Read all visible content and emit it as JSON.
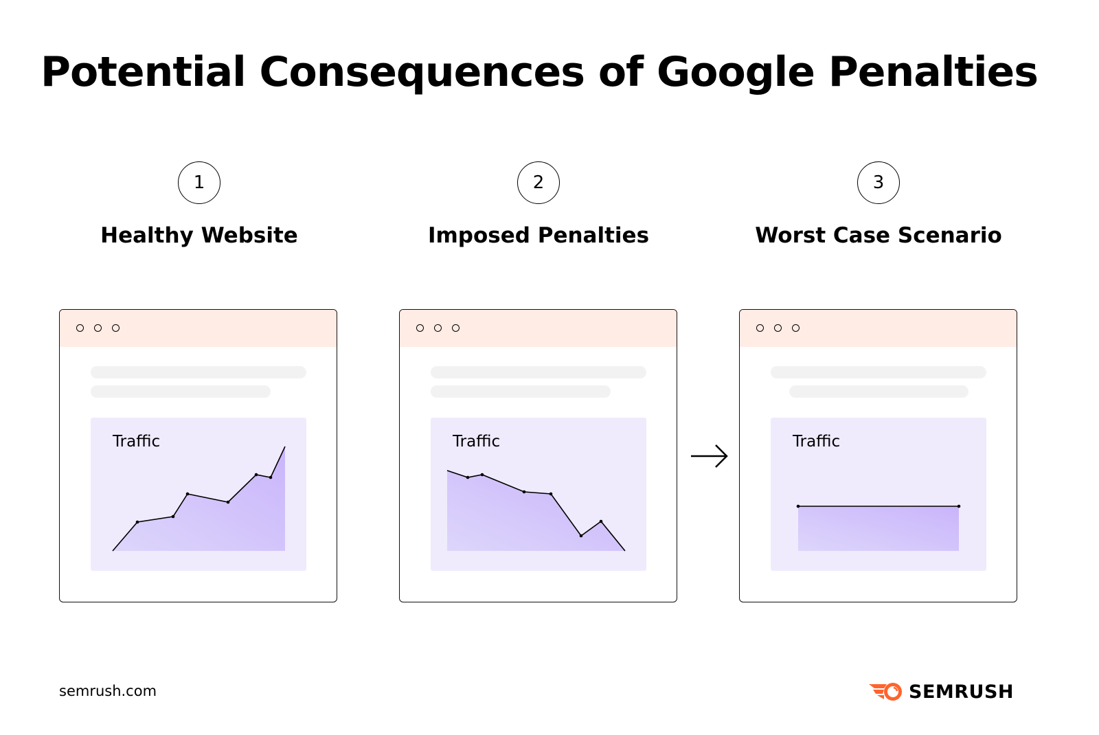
{
  "title": "Potential Consequences of Google Penalties",
  "steps": [
    {
      "number": "1",
      "label": "Healthy Website",
      "chart_label": "Traffic",
      "trend": "rising"
    },
    {
      "number": "2",
      "label": "Imposed Penalties",
      "chart_label": "Traffic",
      "trend": "falling"
    },
    {
      "number": "3",
      "label": "Worst Case Scenario",
      "chart_label": "Traffic",
      "trend": "flat"
    }
  ],
  "footer": {
    "url": "semrush.com",
    "brand": "SEMRUSH"
  },
  "colors": {
    "window_bar": "#ffece4",
    "chart_bg": "#efebfc",
    "area_fill": "#c9b4fb",
    "brand_orange": "#ff642d"
  },
  "icons": {
    "arrow": "arrow-right-icon",
    "logo": "semrush-logo-icon"
  }
}
